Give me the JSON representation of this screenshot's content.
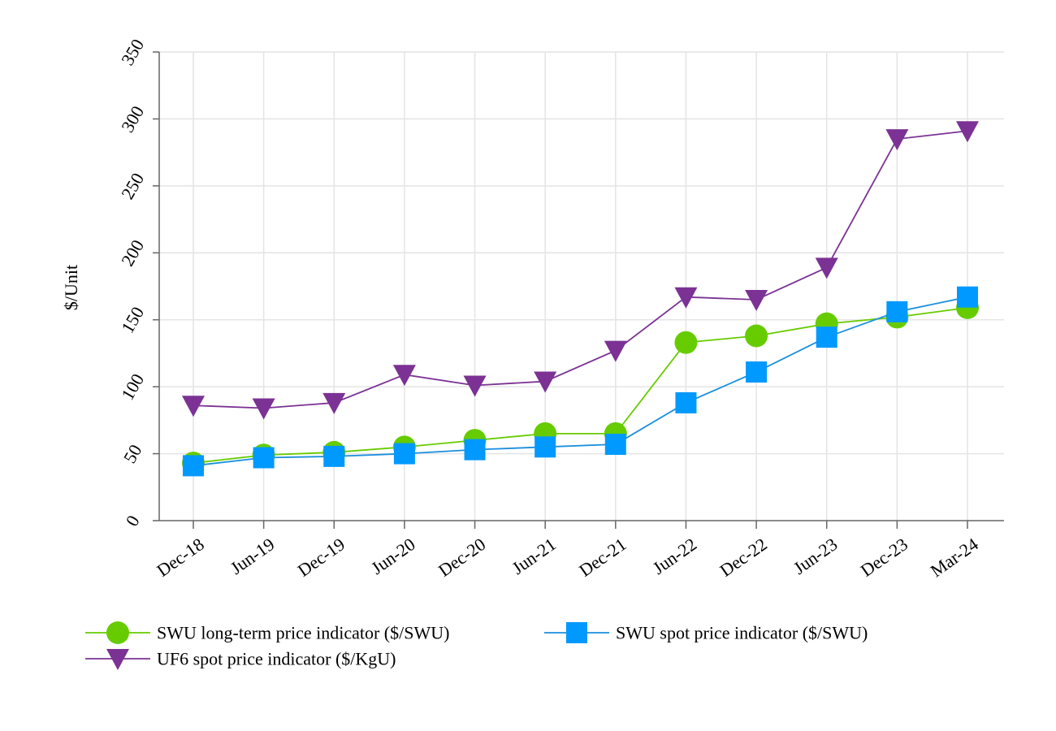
{
  "chart_data": {
    "type": "line",
    "title": "",
    "xlabel": "",
    "ylabel": "$/Unit",
    "ylim": [
      0,
      350
    ],
    "yticks": [
      0,
      50,
      100,
      150,
      200,
      250,
      300,
      350
    ],
    "categories": [
      "Dec-18",
      "Jun-19",
      "Dec-19",
      "Jun-20",
      "Dec-20",
      "Jun-21",
      "Dec-21",
      "Jun-22",
      "Dec-22",
      "Jun-23",
      "Dec-23",
      "Mar-24"
    ],
    "grid": true,
    "legend_position": "bottom",
    "series": [
      {
        "name": "SWU long-term price indicator ($/SWU)",
        "color": "#66cc00",
        "marker": "circle",
        "values": [
          43,
          49,
          51,
          55,
          60,
          65,
          65,
          133,
          138,
          147,
          152,
          159
        ]
      },
      {
        "name": "SWU spot price indicator ($/SWU)",
        "color": "#0099ff",
        "line_color": "#1a8fdd",
        "marker": "square",
        "values": [
          41,
          47,
          48,
          50,
          53,
          55,
          57,
          88,
          111,
          137,
          156,
          167
        ]
      },
      {
        "name": "UF6 spot price indicator ($/KgU)",
        "color": "#7b3294",
        "marker": "triangle-down",
        "values": [
          86,
          84,
          88,
          109,
          101,
          104,
          127,
          167,
          165,
          189,
          285,
          291
        ]
      }
    ]
  }
}
